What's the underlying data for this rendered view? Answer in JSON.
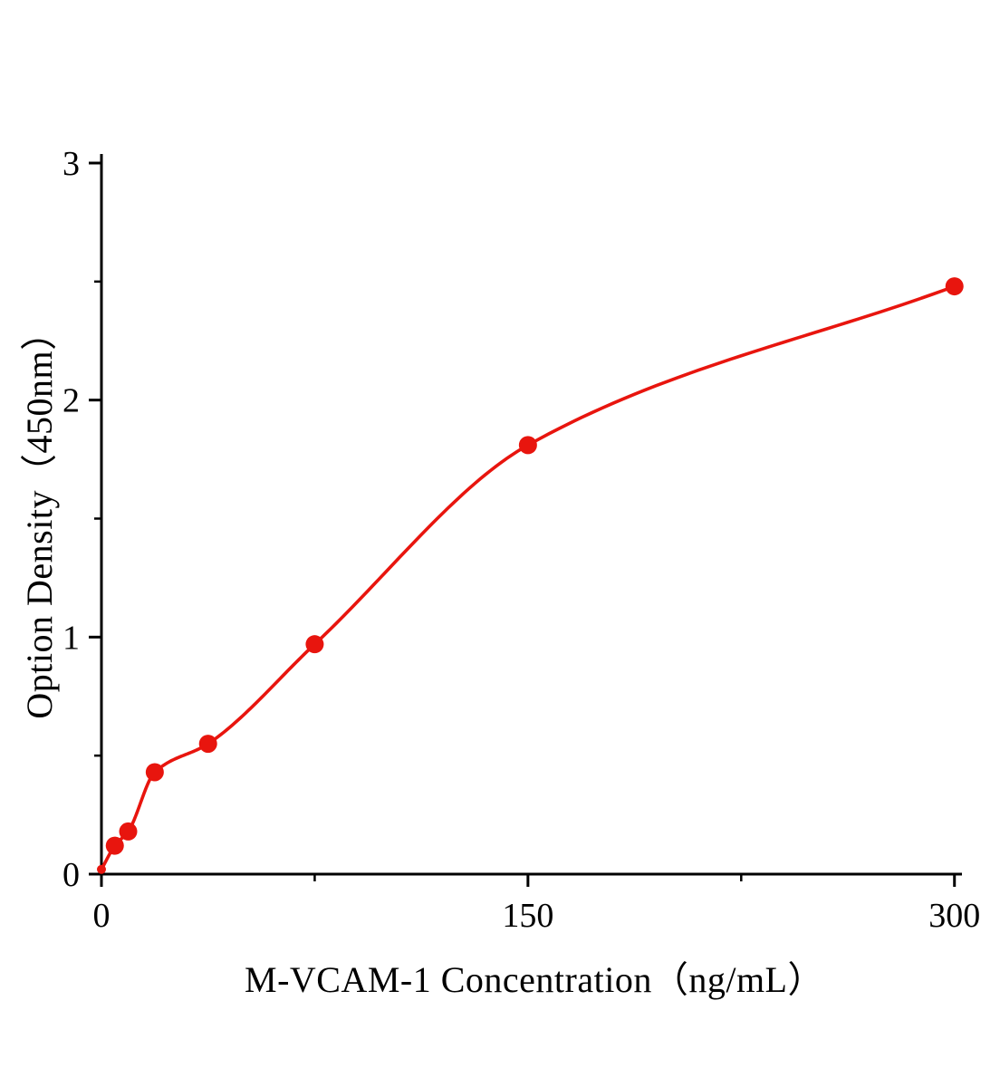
{
  "chart_data": {
    "type": "scatter",
    "title": "",
    "xlabel": "M-VCAM-1 Concentration（ng/mL）",
    "ylabel": "Option Density（450nm）",
    "x": [
      0,
      4.7,
      9.4,
      18.75,
      37.5,
      75,
      150,
      300
    ],
    "y": [
      0.02,
      0.12,
      0.18,
      0.43,
      0.55,
      0.97,
      1.81,
      2.48
    ],
    "xlim": [
      0,
      302
    ],
    "ylim": [
      0,
      3
    ],
    "x_ticks": [
      0,
      150,
      300
    ],
    "x_tick_labels": [
      "0",
      "150",
      "300"
    ],
    "x_minor_ticks": [
      75,
      225
    ],
    "y_ticks": [
      0,
      1,
      2,
      3
    ],
    "y_tick_labels": [
      "0",
      "1",
      "2",
      "3"
    ],
    "y_minor_ticks": [
      0.5,
      1.5,
      2.5
    ],
    "curve": "smooth-fit-through-points",
    "legend": null,
    "grid": false,
    "point_color": "#e8150e",
    "line_color": "#e8150e",
    "axis_color": "#000000",
    "background_color": "#ffffff"
  }
}
